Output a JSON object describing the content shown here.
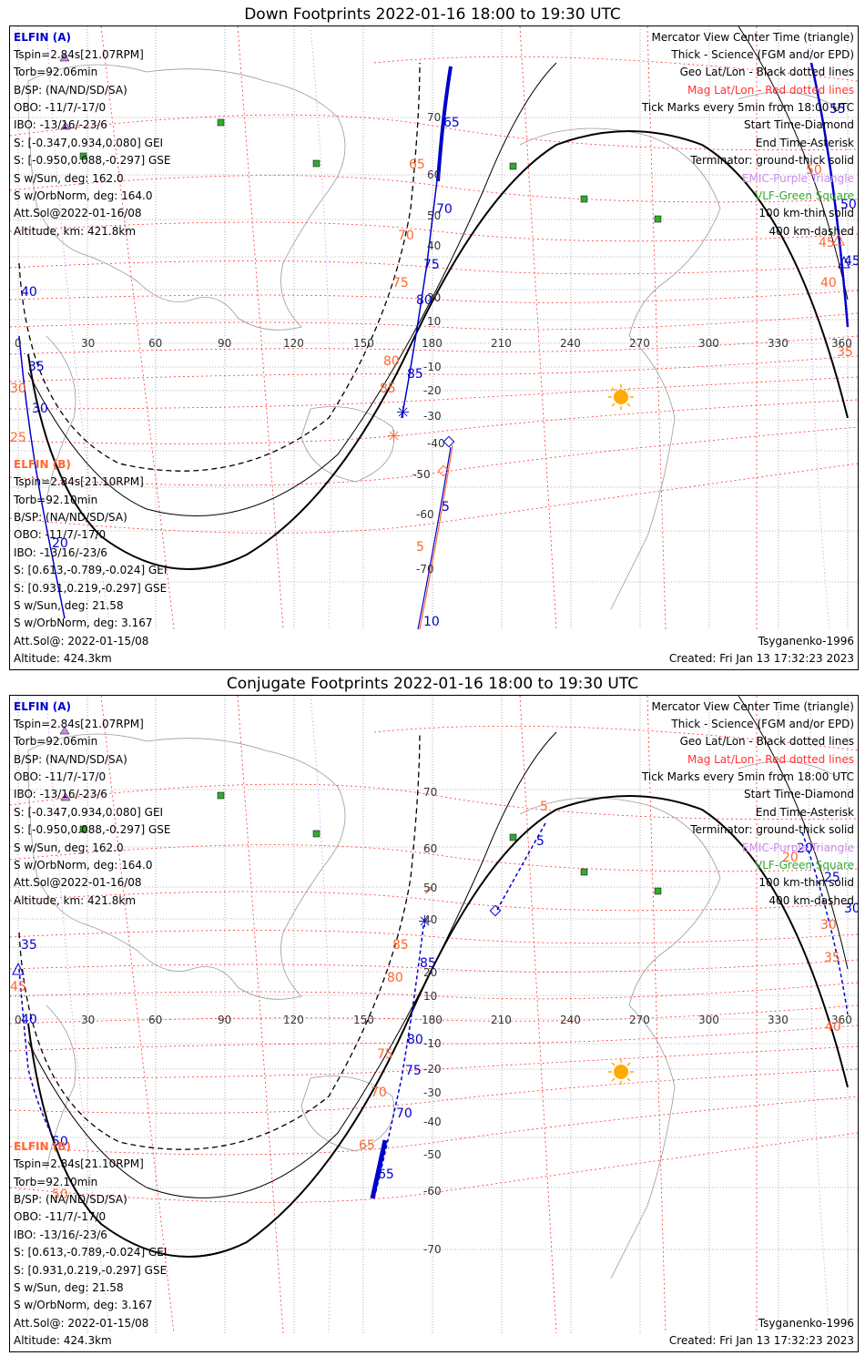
{
  "panels": [
    {
      "title": "Down Footprints 2022-01-16 18:00 to 19:30 UTC",
      "elfin_a": {
        "label": "ELFIN (A)",
        "lines": [
          "Tspin=2.84s[21.07RPM]",
          "Torb=92.06min",
          "B/SP: (NA/ND/SD/SA)",
          "OBO: -11/7/-17/0",
          "IBO: -13/16/-23/6",
          "S: [-0.347,0.934,0.080] GEI",
          "S: [-0.950,0.088,-0.297] GSE",
          "S w/Sun, deg: 162.0",
          "S w/OrbNorm, deg: 164.0",
          "Att.Sol@2022-01-16/08",
          "Altitude, km: 421.8km"
        ]
      },
      "elfin_b": {
        "label": "ELFIN (B)",
        "lines": [
          "Tspin=2.84s[21.10RPM]",
          "Torb=92.10min",
          "B/SP: (NA/ND/SD/SA)",
          "OBO: -11/7/-17/0",
          "IBO: -13/16/-23/6",
          "S: [0.613,-0.789,-0.024] GEI",
          "S: [0.931,0.219,-0.297] GSE",
          "S w/Sun, deg: 21.58",
          "S w/OrbNorm, deg: 3.167",
          "Att.Sol@: 2022-01-15/08",
          "Altitude: 424.3km"
        ]
      },
      "legend": [
        "Mercator View Center Time (triangle)",
        "Thick - Science (FGM and/or EPD)",
        "Geo Lat/Lon - Black dotted lines",
        "Mag Lat/Lon - Red dotted lines",
        "Tick Marks every 5min from 18:00 UTC",
        "Start Time-Diamond",
        "End Time-Asterisk",
        "Terminator: ground-thick solid",
        "EMIC-Purple Triangle",
        "VLF-Green Square",
        "100 km-thin solid",
        "400 km-dashed"
      ],
      "model": "Tsyganenko-1996",
      "created": "Created: Fri Jan 13 17:32:23 2023",
      "lon_labels": [
        "0",
        "30",
        "60",
        "90",
        "120",
        "150",
        "180",
        "210",
        "240",
        "270",
        "300",
        "330",
        "360"
      ],
      "lat_labels": [
        "70",
        "60",
        "50",
        "40",
        "30",
        "20",
        "10",
        "-10",
        "-20",
        "-30",
        "-40",
        "-50",
        "-60",
        "-70"
      ],
      "track_a_ticks": [
        "65",
        "70",
        "75",
        "80",
        "85",
        "40",
        "35",
        "30",
        "20",
        "50",
        "45",
        "55"
      ],
      "track_a_mag": [
        "65",
        "70",
        "75",
        "80",
        "85",
        "30",
        "25",
        "50",
        "45",
        "40",
        "35"
      ],
      "track_b_ticks": [
        "5",
        "10"
      ],
      "track_b_mag": [
        "5"
      ]
    },
    {
      "title": "Conjugate Footprints 2022-01-16 18:00 to 19:30 UTC",
      "elfin_a": {
        "label": "ELFIN (A)",
        "lines": [
          "Tspin=2.84s[21.07RPM]",
          "Torb=92.06min",
          "B/SP: (NA/ND/SD/SA)",
          "OBO: -11/7/-17/0",
          "IBO: -13/16/-23/6",
          "S: [-0.347,0.934,0.080] GEI",
          "S: [-0.950,0.088,-0.297] GSE",
          "S w/Sun, deg: 162.0",
          "S w/OrbNorm, deg: 164.0",
          "Att.Sol@2022-01-16/08",
          "Altitude, km: 421.8km"
        ]
      },
      "elfin_b": {
        "label": "ELFIN (B)",
        "lines": [
          "Tspin=2.84s[21.10RPM]",
          "Torb=92.10min",
          "B/SP: (NA/ND/SD/SA)",
          "OBO: -11/7/-17/0",
          "IBO: -13/16/-23/6",
          "S: [0.613,-0.789,-0.024] GEI",
          "S: [0.931,0.219,-0.297] GSE",
          "S w/Sun, deg: 21.58",
          "S w/OrbNorm, deg: 3.167",
          "Att.Sol@: 2022-01-15/08",
          "Altitude: 424.3km"
        ]
      },
      "legend": [
        "Mercator View Center Time (triangle)",
        "Thick - Science (FGM and/or EPD)",
        "Geo Lat/Lon - Black dotted lines",
        "Mag Lat/Lon - Red dotted lines",
        "Tick Marks every 5min from 18:00 UTC",
        "Start Time-Diamond",
        "End Time-Asterisk",
        "Terminator: ground-thick solid",
        "EMIC-Purple Triangle",
        "VLF-Green Square",
        "100 km-thin solid",
        "400 km-dashed"
      ],
      "model": "Tsyganenko-1996",
      "created": "Created: Fri Jan 13 17:32:23 2023",
      "lon_labels": [
        "0",
        "30",
        "60",
        "90",
        "120",
        "150",
        "180",
        "210",
        "240",
        "270",
        "300",
        "330",
        "360"
      ],
      "lat_labels": [
        "70",
        "60",
        "50",
        "40",
        "30",
        "20",
        "10",
        "-10",
        "-20",
        "-30",
        "-40",
        "-50",
        "-60",
        "-70"
      ],
      "track_a_ticks": [
        "85",
        "80",
        "75",
        "70",
        "65",
        "35",
        "40",
        "45",
        "50",
        "20",
        "25",
        "30"
      ],
      "track_a_mag": [
        "85",
        "80",
        "75",
        "70",
        "65",
        "45",
        "50",
        "20",
        "30",
        "35",
        "40"
      ],
      "track_b_ticks": [
        "5"
      ],
      "track_b_mag": [
        "5"
      ]
    }
  ],
  "colors": {
    "elfin_a": "#0000cc",
    "elfin_b": "#ff6633",
    "mag_grid": "#ff3333",
    "emic": "#cc88ee",
    "vlf": "#33aa33",
    "sun": "#ffaa00"
  }
}
